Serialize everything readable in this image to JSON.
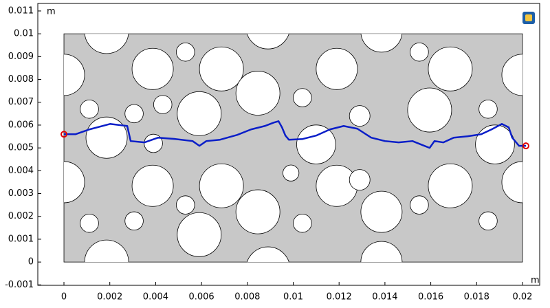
{
  "chart_data": {
    "type": "line",
    "x_unit": "m",
    "y_unit": "m",
    "xlim": [
      -0.00114,
      0.02075
    ],
    "ylim": [
      -0.00102,
      0.01133
    ],
    "xticks": [
      0,
      0.002,
      0.004,
      0.006,
      0.008,
      0.01,
      0.012,
      0.014,
      0.016,
      0.018,
      0.02
    ],
    "yticks": [
      -0.001,
      0,
      0.001,
      0.002,
      0.003,
      0.004,
      0.005,
      0.006,
      0.007,
      0.008,
      0.009,
      0.01,
      0.011
    ],
    "domain_x": [
      0,
      0.02
    ],
    "domain_y": [
      0,
      0.01
    ],
    "domain_color": "#c8c8c8",
    "circles": [
      [
        0.00186,
        0.0101,
        0.00096
      ],
      [
        0.0089,
        0.0103,
        0.00096
      ],
      [
        0.01385,
        0.0101,
        0.0009
      ],
      [
        0,
        0.0082,
        0.0009
      ],
      [
        0.00387,
        0.00846,
        0.0009
      ],
      [
        0.00687,
        0.00846,
        0.00096
      ],
      [
        0.0119,
        0.00846,
        0.0009
      ],
      [
        0.01685,
        0.00846,
        0.00096
      ],
      [
        0.02,
        0.0082,
        0.0009
      ],
      [
        0.0059,
        0.0065,
        0.00096
      ],
      [
        0.00846,
        0.0074,
        0.00096
      ],
      [
        0.00186,
        0.00545,
        0.0009
      ],
      [
        0.011,
        0.00515,
        0.00085
      ],
      [
        0.0188,
        0.00515,
        0.00085
      ],
      [
        0.01595,
        0.00666,
        0.00096
      ],
      [
        0.00387,
        0.00334,
        0.0009
      ],
      [
        0.00687,
        0.00334,
        0.00096
      ],
      [
        0.0119,
        0.00334,
        0.0009
      ],
      [
        0.01685,
        0.00334,
        0.00096
      ],
      [
        0,
        0.0035,
        0.0009
      ],
      [
        0.02,
        0.0035,
        0.0009
      ],
      [
        0.00846,
        0.0022,
        0.00096
      ],
      [
        0.0059,
        0.0012,
        0.00096
      ],
      [
        0.01385,
        0.0022,
        0.0009
      ],
      [
        0.00186,
        0,
        0.00096
      ],
      [
        0.0089,
        -0.0003,
        0.00096
      ],
      [
        0.01385,
        0,
        0.0009
      ],
      [
        0.00111,
        0.0067,
        0.0004
      ],
      [
        0.00306,
        0.0065,
        0.0004
      ],
      [
        0.00431,
        0.0069,
        0.0004
      ],
      [
        0.0053,
        0.0092,
        0.0004
      ],
      [
        0.0104,
        0.0072,
        0.0004
      ],
      [
        0.0129,
        0.0064,
        0.00045
      ],
      [
        0.0155,
        0.0092,
        0.0004
      ],
      [
        0.0185,
        0.0067,
        0.0004
      ],
      [
        0.00111,
        0.0017,
        0.0004
      ],
      [
        0.00306,
        0.0018,
        0.0004
      ],
      [
        0.0053,
        0.0025,
        0.0004
      ],
      [
        0.0104,
        0.0017,
        0.0004
      ],
      [
        0.0129,
        0.0036,
        0.00045
      ],
      [
        0.0155,
        0.0025,
        0.0004
      ],
      [
        0.0185,
        0.0018,
        0.0004
      ],
      [
        0.0039,
        0.0052,
        0.0004
      ],
      [
        0.0099,
        0.0039,
        0.00035
      ]
    ],
    "marker_color": "#e00000",
    "series": [
      {
        "color": "#0a1ec8",
        "x": [
          0,
          0.00051,
          0.00111,
          0.00201,
          0.00276,
          0.00291,
          0.00351,
          0.00411,
          0.00486,
          0.00561,
          0.00591,
          0.00621,
          0.00681,
          0.00756,
          0.00816,
          0.00876,
          0.00915,
          0.00936,
          0.00951,
          0.00966,
          0.00981,
          0.01041,
          0.011,
          0.0116,
          0.0122,
          0.0128,
          0.0134,
          0.014,
          0.0146,
          0.0152,
          0.01565,
          0.01595,
          0.01616,
          0.01655,
          0.017,
          0.0176,
          0.0182,
          0.01865,
          0.0191,
          0.0194,
          0.01955,
          0.01985,
          0.02015
        ],
        "values": [
          0.0056,
          0.0056,
          0.00581,
          0.00605,
          0.00596,
          0.0053,
          0.00524,
          0.00545,
          0.00539,
          0.0053,
          0.00509,
          0.0053,
          0.00536,
          0.00557,
          0.00581,
          0.00596,
          0.00611,
          0.00617,
          0.0059,
          0.00554,
          0.00536,
          0.00539,
          0.00554,
          0.00581,
          0.00596,
          0.00584,
          0.00545,
          0.0053,
          0.00524,
          0.0053,
          0.00512,
          0.005,
          0.0053,
          0.00524,
          0.00545,
          0.00551,
          0.0056,
          0.00581,
          0.00605,
          0.0059,
          0.00545,
          0.00509,
          0.00509
        ]
      }
    ]
  }
}
